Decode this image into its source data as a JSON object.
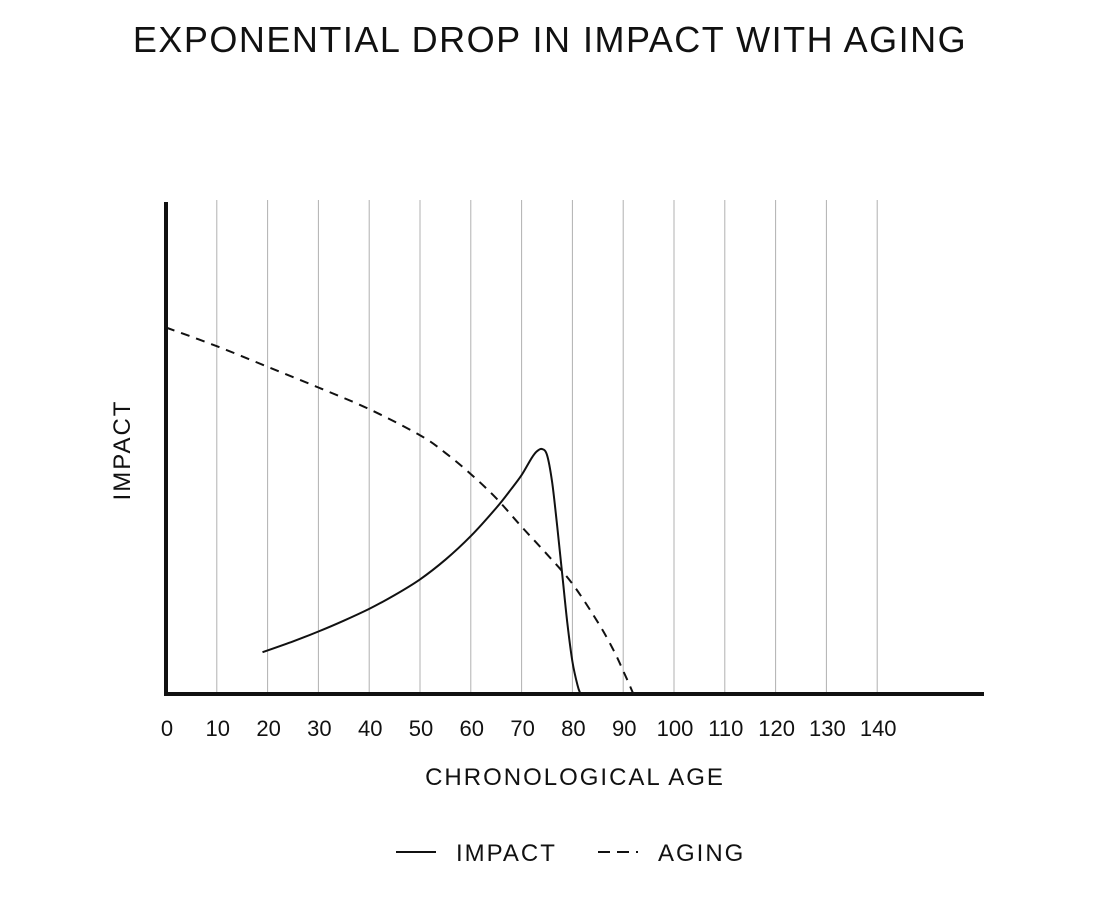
{
  "chart_data": {
    "type": "line",
    "title": "EXPONENTIAL DROP IN IMPACT WITH AGING",
    "xlabel": "CHRONOLOGICAL AGE",
    "ylabel": "IMPACT",
    "xlim": [
      0,
      148
    ],
    "ylim": [
      0,
      100
    ],
    "x_ticks": [
      0,
      10,
      20,
      30,
      40,
      50,
      60,
      70,
      80,
      90,
      100,
      110,
      120,
      130,
      140
    ],
    "x_tick_labels": [
      "0",
      "10",
      "20",
      "30",
      "40",
      "50",
      "60",
      "70",
      "80",
      "90",
      "100",
      "110",
      "120",
      "130",
      "140"
    ],
    "grid": "vertical",
    "legend_position": "bottom",
    "series": [
      {
        "name": "IMPACT",
        "style": "solid",
        "x": [
          19,
          25,
          30,
          35,
          40,
          45,
          50,
          55,
          60,
          65,
          68,
          70,
          72,
          73,
          74,
          75,
          76,
          77,
          78,
          79,
          80,
          81,
          81.6
        ],
        "y": [
          8.5,
          10.7,
          12.7,
          14.9,
          17.3,
          20.1,
          23.3,
          27.3,
          32.1,
          37.8,
          41.7,
          44.5,
          48.0,
          49.3,
          49.8,
          48.6,
          43.1,
          34.1,
          24.4,
          14.5,
          6.6,
          1.8,
          0
        ]
      },
      {
        "name": "AGING",
        "style": "dashed",
        "x": [
          0,
          10,
          20,
          30,
          40,
          50,
          55,
          60,
          65,
          70,
          75,
          80,
          85,
          88,
          90,
          91,
          92
        ],
        "y": [
          74.5,
          70.7,
          66.5,
          62.3,
          57.9,
          52.6,
          49.0,
          44.7,
          39.8,
          34.0,
          28.4,
          22.4,
          14.6,
          9.1,
          4.7,
          2.4,
          0
        ]
      }
    ],
    "colors": {
      "line": "#111111",
      "axis": "#111111",
      "grid": "#b0b0b0",
      "background": "#ffffff"
    }
  }
}
